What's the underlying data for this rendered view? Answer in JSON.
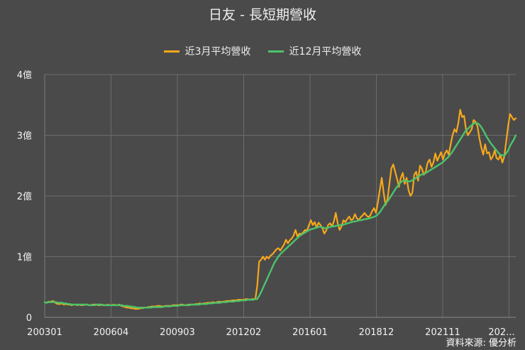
{
  "chart_data": {
    "type": "line",
    "title": "日友 - 長短期營收",
    "x_tick_labels": [
      "200301",
      "200604",
      "200903",
      "201202",
      "201601",
      "201812",
      "202111",
      "202..."
    ],
    "y_tick_labels": [
      "0",
      "1億",
      "2億",
      "3億",
      "4億"
    ],
    "ylim": [
      0,
      4
    ],
    "grid": true,
    "legend_position": "top",
    "series": [
      {
        "name": "近3月平均營收",
        "color": "#f5a81c",
        "values": [
          0.25,
          0.24,
          0.26,
          0.25,
          0.27,
          0.26,
          0.23,
          0.22,
          0.22,
          0.23,
          0.21,
          0.22,
          0.21,
          0.21,
          0.2,
          0.21,
          0.21,
          0.2,
          0.21,
          0.2,
          0.2,
          0.21,
          0.21,
          0.2,
          0.2,
          0.21,
          0.21,
          0.21,
          0.2,
          0.2,
          0.21,
          0.2,
          0.2,
          0.21,
          0.2,
          0.2,
          0.21,
          0.2,
          0.2,
          0.21,
          0.19,
          0.18,
          0.17,
          0.16,
          0.16,
          0.15,
          0.15,
          0.14,
          0.14,
          0.14,
          0.15,
          0.15,
          0.16,
          0.16,
          0.17,
          0.17,
          0.18,
          0.18,
          0.18,
          0.19,
          0.19,
          0.18,
          0.18,
          0.19,
          0.19,
          0.19,
          0.19,
          0.2,
          0.2,
          0.2,
          0.2,
          0.21,
          0.21,
          0.2,
          0.2,
          0.21,
          0.21,
          0.21,
          0.21,
          0.22,
          0.22,
          0.23,
          0.22,
          0.23,
          0.23,
          0.24,
          0.24,
          0.24,
          0.25,
          0.24,
          0.25,
          0.26,
          0.25,
          0.26,
          0.26,
          0.27,
          0.27,
          0.27,
          0.28,
          0.28,
          0.28,
          0.29,
          0.29,
          0.29,
          0.29,
          0.3,
          0.3,
          0.29,
          0.3,
          0.3,
          0.3,
          0.52,
          0.92,
          0.95,
          1.0,
          0.95,
          1.0,
          0.97,
          1.02,
          1.04,
          1.08,
          1.12,
          1.14,
          1.1,
          1.15,
          1.2,
          1.28,
          1.22,
          1.27,
          1.3,
          1.35,
          1.44,
          1.33,
          1.38,
          1.37,
          1.4,
          1.44,
          1.43,
          1.52,
          1.6,
          1.52,
          1.57,
          1.48,
          1.56,
          1.52,
          1.47,
          1.38,
          1.43,
          1.52,
          1.55,
          1.5,
          1.58,
          1.72,
          1.55,
          1.44,
          1.5,
          1.6,
          1.57,
          1.62,
          1.66,
          1.6,
          1.62,
          1.7,
          1.63,
          1.6,
          1.65,
          1.68,
          1.72,
          1.68,
          1.65,
          1.68,
          1.75,
          1.8,
          1.72,
          1.9,
          2.1,
          2.3,
          2.05,
          1.85,
          1.95,
          2.2,
          2.45,
          2.52,
          2.4,
          2.28,
          2.15,
          2.3,
          2.38,
          2.2,
          2.3,
          2.1,
          2.0,
          2.05,
          2.35,
          2.4,
          2.25,
          2.5,
          2.45,
          2.35,
          2.4,
          2.55,
          2.6,
          2.48,
          2.55,
          2.7,
          2.58,
          2.65,
          2.72,
          2.6,
          2.7,
          2.75,
          2.68,
          2.85,
          3.0,
          3.1,
          3.05,
          3.2,
          3.42,
          3.3,
          3.32,
          3.1,
          3.0,
          3.05,
          3.1,
          3.25,
          3.22,
          3.15,
          2.95,
          2.8,
          2.68,
          2.85,
          2.7,
          2.72,
          2.6,
          2.65,
          2.75,
          2.62,
          2.6,
          2.68,
          2.55,
          2.65,
          2.9,
          3.15,
          3.35,
          3.3,
          3.25,
          3.28
        ],
        "data_labels": []
      },
      {
        "name": "近12月平均營收",
        "color": "#4cc36c",
        "values": [
          0.25,
          0.24,
          0.25,
          0.25,
          0.25,
          0.25,
          0.25,
          0.24,
          0.24,
          0.24,
          0.23,
          0.23,
          0.22,
          0.22,
          0.21,
          0.21,
          0.21,
          0.21,
          0.21,
          0.21,
          0.21,
          0.21,
          0.21,
          0.2,
          0.2,
          0.2,
          0.2,
          0.21,
          0.21,
          0.21,
          0.2,
          0.2,
          0.2,
          0.2,
          0.2,
          0.2,
          0.2,
          0.2,
          0.2,
          0.2,
          0.2,
          0.19,
          0.19,
          0.19,
          0.18,
          0.18,
          0.17,
          0.17,
          0.16,
          0.16,
          0.16,
          0.16,
          0.16,
          0.16,
          0.16,
          0.16,
          0.17,
          0.17,
          0.17,
          0.17,
          0.17,
          0.17,
          0.18,
          0.18,
          0.18,
          0.18,
          0.19,
          0.19,
          0.19,
          0.19,
          0.2,
          0.2,
          0.2,
          0.2,
          0.2,
          0.2,
          0.21,
          0.21,
          0.21,
          0.21,
          0.21,
          0.22,
          0.22,
          0.22,
          0.22,
          0.23,
          0.23,
          0.23,
          0.24,
          0.24,
          0.24,
          0.24,
          0.25,
          0.25,
          0.25,
          0.26,
          0.26,
          0.26,
          0.26,
          0.27,
          0.27,
          0.27,
          0.28,
          0.28,
          0.28,
          0.29,
          0.29,
          0.29,
          0.29,
          0.3,
          0.3,
          0.35,
          0.41,
          0.48,
          0.55,
          0.62,
          0.69,
          0.76,
          0.83,
          0.9,
          0.95,
          1.0,
          1.04,
          1.07,
          1.1,
          1.13,
          1.16,
          1.19,
          1.22,
          1.25,
          1.28,
          1.31,
          1.34,
          1.36,
          1.38,
          1.4,
          1.42,
          1.44,
          1.45,
          1.46,
          1.47,
          1.48,
          1.49,
          1.49,
          1.48,
          1.47,
          1.47,
          1.48,
          1.49,
          1.5,
          1.5,
          1.51,
          1.51,
          1.52,
          1.52,
          1.53,
          1.54,
          1.55,
          1.56,
          1.57,
          1.58,
          1.58,
          1.59,
          1.6,
          1.6,
          1.61,
          1.62,
          1.62,
          1.63,
          1.64,
          1.65,
          1.66,
          1.68,
          1.71,
          1.75,
          1.8,
          1.85,
          1.89,
          1.93,
          1.98,
          2.03,
          2.08,
          2.13,
          2.17,
          2.21,
          2.24,
          2.25,
          2.25,
          2.24,
          2.24,
          2.25,
          2.27,
          2.29,
          2.31,
          2.33,
          2.35,
          2.36,
          2.37,
          2.39,
          2.41,
          2.43,
          2.45,
          2.47,
          2.49,
          2.51,
          2.53,
          2.55,
          2.58,
          2.61,
          2.64,
          2.68,
          2.72,
          2.77,
          2.82,
          2.87,
          2.92,
          2.97,
          3.02,
          3.07,
          3.1,
          3.13,
          3.16,
          3.19,
          3.2,
          3.2,
          3.18,
          3.14,
          3.09,
          3.03,
          2.97,
          2.92,
          2.87,
          2.83,
          2.79,
          2.75,
          2.71,
          2.68,
          2.67,
          2.66,
          2.7,
          2.75,
          2.82,
          2.88,
          2.93,
          3.0
        ]
      }
    ]
  },
  "source_text": "資料來源: 優分析"
}
